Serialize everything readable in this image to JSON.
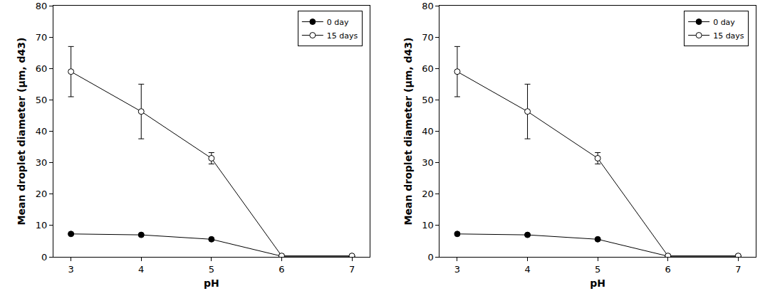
{
  "chart_data": [
    {
      "type": "line",
      "xlabel": "pH",
      "ylabel": "Mean droplet diameter (μm, d43)",
      "x": [
        3,
        4,
        5,
        6,
        7
      ],
      "series": [
        {
          "name": "0 day",
          "color": "#000000",
          "marker": "circle",
          "values": [
            7.3,
            7.0,
            5.6,
            0.2,
            0.2
          ],
          "errors": [
            0.3,
            0.3,
            0.3,
            0.1,
            0.1
          ]
        },
        {
          "name": "15 days",
          "color": "#000000",
          "marker": "circle-open",
          "values": [
            59.0,
            46.3,
            31.4,
            0.3,
            0.3
          ],
          "errors": [
            8.0,
            8.7,
            1.8,
            0.1,
            0.1
          ]
        }
      ],
      "xlim": [
        2.75,
        7.25
      ],
      "xticks": [
        3,
        4,
        5,
        6,
        7
      ],
      "ylim": [
        0,
        80
      ],
      "yticks": [
        0,
        10,
        20,
        30,
        40,
        50,
        60,
        70,
        80
      ],
      "grid": false,
      "legend": "upper right"
    },
    {
      "type": "line",
      "xlabel": "pH",
      "ylabel": "Mean droplet diameter (μm, d43)",
      "x": [
        3,
        4,
        5,
        6,
        7
      ],
      "series": [
        {
          "name": "0 day",
          "color": "#000000",
          "marker": "circle",
          "values": [
            7.3,
            7.0,
            5.6,
            0.2,
            0.2
          ],
          "errors": [
            0.3,
            0.3,
            0.3,
            0.1,
            0.1
          ]
        },
        {
          "name": "15 days",
          "color": "#000000",
          "marker": "circle-open",
          "values": [
            59.0,
            46.3,
            31.4,
            0.3,
            0.3
          ],
          "errors": [
            8.0,
            8.7,
            1.8,
            0.1,
            0.1
          ]
        }
      ],
      "xlim": [
        2.75,
        7.25
      ],
      "xticks": [
        3,
        4,
        5,
        6,
        7
      ],
      "ylim": [
        0,
        80
      ],
      "yticks": [
        0,
        10,
        20,
        30,
        40,
        50,
        60,
        70,
        80
      ],
      "grid": false,
      "legend": "upper right"
    }
  ]
}
